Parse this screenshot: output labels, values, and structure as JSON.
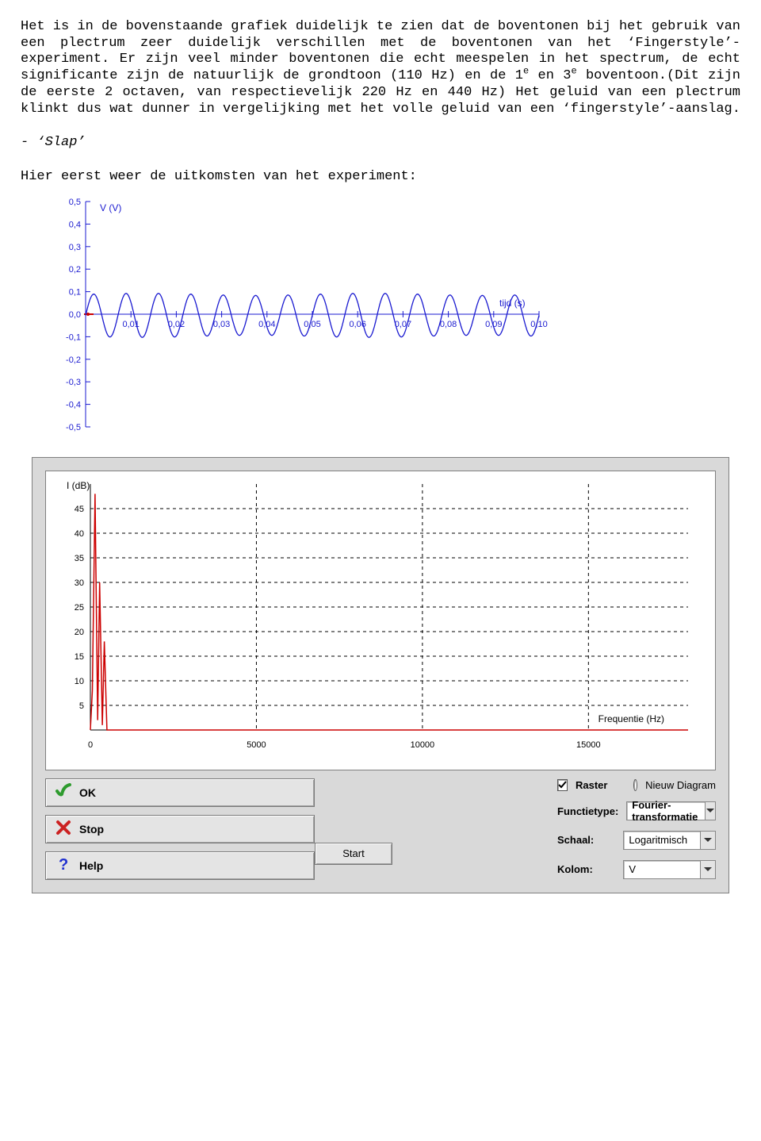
{
  "text": {
    "para1": "Het is in de bovenstaande grafiek duidelijk te zien dat de boventonen bij het gebruik van een plectrum zeer duidelijk verschillen met de boventonen van het ‘Fingerstyle’-experiment. Er zijn veel minder boventonen die echt meespelen in het spectrum, de echt significante zijn de natuurlijk de grondtoon (110 Hz) en de 1",
    "para1_after_sup1": " en 3",
    "para1_after_sup2": " boventoon.(Dit zijn de eerste 2 octaven, van respectievelijk 220 Hz en 440 Hz) Het geluid van een plectrum klinkt dus wat dunner in vergelijking met het volle geluid van een ‘fingerstyle’-aanslag.",
    "sup": "e",
    "slap_heading": "- ‘Slap’",
    "intro": "Hier eerst weer de uitkomsten van het experiment:"
  },
  "time_chart": {
    "ylabel": "V (V)",
    "xlabel": "tijd (s)",
    "y_ticks": [
      "0,5",
      "0,4",
      "0,3",
      "0,2",
      "0,1",
      "0,0",
      "-0,1",
      "-0,2",
      "-0,3",
      "-0,4",
      "-0,5"
    ],
    "x_ticks": [
      "0,01",
      "0,02",
      "0,03",
      "0,04",
      "0,05",
      "0,06",
      "0,07",
      "0,08",
      "0,09",
      "0,10"
    ],
    "line_color": "#1a1ad0",
    "zero_color": "#cc0000",
    "y_min": -0.5,
    "y_max": 0.5,
    "wave_freq_hz": 140,
    "wave_amp_v": 0.095,
    "wave_offset_v": -0.005,
    "duration_s": 0.1
  },
  "freq_chart": {
    "ylabel": "I (dB)",
    "xlabel": "Frequentie (Hz)",
    "y_ticks": [
      "45",
      "40",
      "35",
      "30",
      "25",
      "20",
      "15",
      "10",
      "5"
    ],
    "x_ticks": [
      "0",
      "5000",
      "10000",
      "15000"
    ],
    "grid_color": "#000000",
    "line_color": "#cc0000",
    "x_max": 18000,
    "y_min": 0,
    "y_max": 50,
    "series": [
      [
        0,
        0
      ],
      [
        60,
        8
      ],
      [
        140,
        48
      ],
      [
        220,
        2
      ],
      [
        280,
        30
      ],
      [
        360,
        1
      ],
      [
        420,
        18
      ],
      [
        500,
        0
      ],
      [
        700,
        0
      ],
      [
        1200,
        0
      ],
      [
        18000,
        0
      ]
    ]
  },
  "controls": {
    "raster_label": "Raster",
    "nieuw_label": "Nieuw Diagram",
    "functietype_label": "Functietype:",
    "functietype_value": "Fourier-transformatie",
    "schaal_label": "Schaal:",
    "schaal_value": "Logaritmisch",
    "kolom_label": "Kolom:",
    "kolom_value": "V",
    "start_label": "Start",
    "ok_label": "OK",
    "stop_label": "Stop",
    "help_label": "Help",
    "ok_color": "#2e9b2e",
    "stop_color": "#cc2222",
    "help_color": "#2030d0"
  }
}
